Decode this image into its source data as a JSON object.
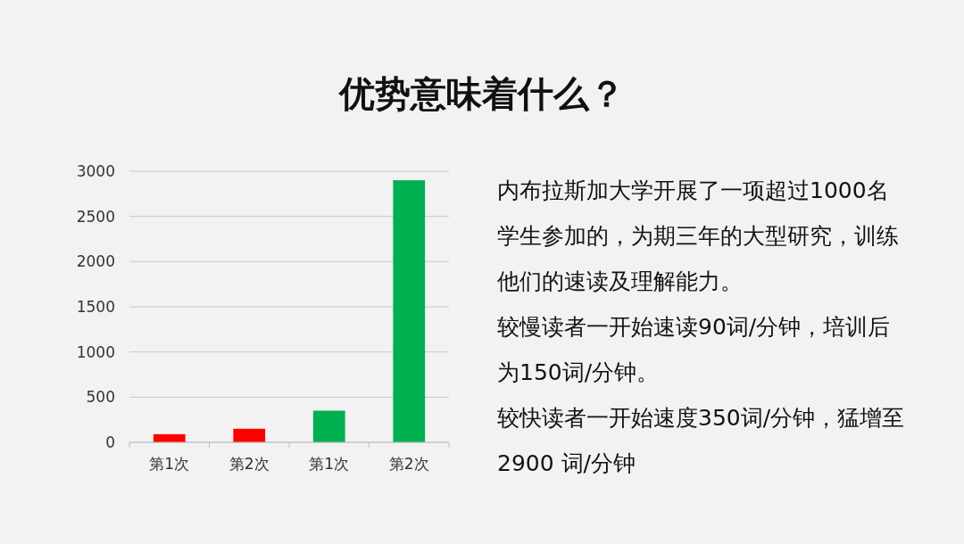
{
  "chart_data": {
    "type": "bar",
    "title": "优势意味着什么？",
    "categories": [
      "第1次",
      "第2次",
      "第1次",
      "第2次"
    ],
    "values": [
      90,
      150,
      350,
      2900
    ],
    "colors": [
      "#ff0000",
      "#ff0000",
      "#00b050",
      "#00b050"
    ],
    "ylim": [
      0,
      3000
    ],
    "yticks": [
      0,
      500,
      1000,
      1500,
      2000,
      2500,
      3000
    ],
    "grid": "y",
    "annotations": [
      "内布拉斯加大学开展了一项超过1000名学生参加的，为期三年的大型研究，训练他们的速读及理解能力。",
      "较慢读者一开始速读90词/分钟，培训后为150词/分钟。",
      "较快读者一开始速度350词/分钟，猛增至 2900 词/分钟"
    ]
  }
}
